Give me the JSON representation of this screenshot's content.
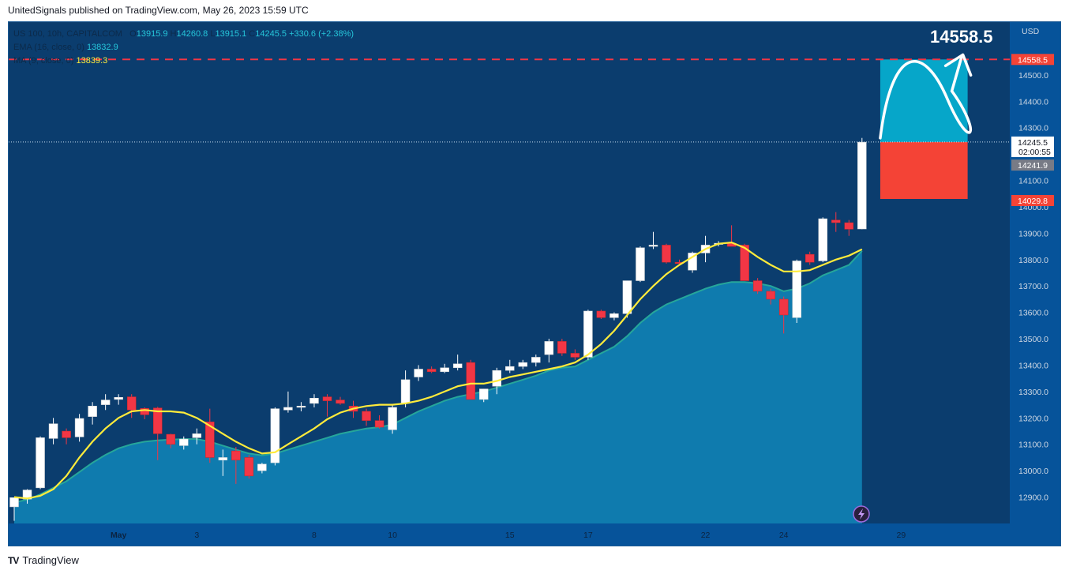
{
  "publisher_line": "UnitedSignals published on TradingView.com, May 26, 2023 15:59 UTC",
  "footer": {
    "logo": "TV",
    "brand": "TradingView"
  },
  "legend": {
    "symbol": "US 100, 10h, CAPITALCOM",
    "o_label": "O",
    "o": "13915.9",
    "h_label": "H",
    "h": "14260.8",
    "l_label": "L",
    "l": "13915.1",
    "c_label": "C",
    "c": "14245.5",
    "change": "+330.6 (+2.38%)",
    "ema_label": "EMA (16, close, 0)",
    "ema_value": "13832.9",
    "ma_label": "MA (9, close, 0)",
    "ma_value": "13839.3"
  },
  "currency": "USD",
  "target_text": "14558.5",
  "price_tags": [
    {
      "value": 14558.5,
      "label": "14558.5",
      "color": "#f44336",
      "text_color": "#ffffff"
    },
    {
      "value": 14245.5,
      "label": "14245.5",
      "sub": "02:00:55",
      "color": "#ffffff",
      "text_color": "#131722"
    },
    {
      "value": 14241.9,
      "label": "14241.9",
      "color": "#787b86",
      "text_color": "#ffffff"
    },
    {
      "value": 14029.8,
      "label": "14029.8",
      "color": "#f44336",
      "text_color": "#ffffff"
    }
  ],
  "colors": {
    "up": "#ffffff",
    "down": "#f23645",
    "ema": "#26a69a",
    "ma": "#ffeb3b",
    "area": "#0f82b5",
    "bg": "#0b3d6e",
    "target_box": "#06a6c9",
    "stop_box": "#f44336",
    "target_line": "#f23645"
  },
  "chart_data": {
    "type": "candlestick",
    "interval": "10h",
    "ylim": [
      12800,
      14700
    ],
    "y_ticks": [
      12900,
      13000,
      13100,
      13200,
      13300,
      13400,
      13500,
      13600,
      13700,
      13800,
      13900,
      14000,
      14100,
      14200,
      14300,
      14400,
      14500
    ],
    "x_ticks": [
      {
        "index": 8,
        "label": "May",
        "bold": true
      },
      {
        "index": 14,
        "label": "3"
      },
      {
        "index": 23,
        "label": "8"
      },
      {
        "index": 29,
        "label": "10"
      },
      {
        "index": 38,
        "label": "15"
      },
      {
        "index": 44,
        "label": "17"
      },
      {
        "index": 53,
        "label": "22"
      },
      {
        "index": 59,
        "label": "24"
      },
      {
        "index": 68,
        "label": "29"
      }
    ],
    "candles": [
      [
        12863,
        12898,
        12810,
        12898
      ],
      [
        12892,
        12930,
        12875,
        12927
      ],
      [
        12935,
        13130,
        12930,
        13125
      ],
      [
        13122,
        13200,
        13100,
        13178
      ],
      [
        13150,
        13160,
        13100,
        13125
      ],
      [
        13128,
        13215,
        13110,
        13198
      ],
      [
        13205,
        13260,
        13175,
        13245
      ],
      [
        13250,
        13290,
        13230,
        13268
      ],
      [
        13270,
        13290,
        13250,
        13278
      ],
      [
        13280,
        13290,
        13200,
        13230
      ],
      [
        13236,
        13240,
        13195,
        13212
      ],
      [
        13238,
        13242,
        13040,
        13140
      ],
      [
        13138,
        13140,
        13085,
        13100
      ],
      [
        13095,
        13130,
        13080,
        13120
      ],
      [
        13125,
        13160,
        13100,
        13140
      ],
      [
        13185,
        13235,
        13030,
        13050
      ],
      [
        13040,
        13080,
        12980,
        13050
      ],
      [
        13075,
        13090,
        12950,
        13040
      ],
      [
        13050,
        13060,
        12970,
        12980
      ],
      [
        13000,
        13030,
        12990,
        13025
      ],
      [
        13030,
        13240,
        13020,
        13235
      ],
      [
        13230,
        13300,
        13220,
        13240
      ],
      [
        13240,
        13260,
        13225,
        13245
      ],
      [
        13255,
        13290,
        13240,
        13275
      ],
      [
        13280,
        13290,
        13205,
        13265
      ],
      [
        13268,
        13280,
        13250,
        13255
      ],
      [
        13245,
        13265,
        13200,
        13225
      ],
      [
        13225,
        13235,
        13170,
        13190
      ],
      [
        13190,
        13210,
        13160,
        13165
      ],
      [
        13155,
        13250,
        13140,
        13240
      ],
      [
        13255,
        13380,
        13240,
        13345
      ],
      [
        13355,
        13400,
        13340,
        13385
      ],
      [
        13385,
        13395,
        13370,
        13375
      ],
      [
        13375,
        13405,
        13370,
        13390
      ],
      [
        13390,
        13440,
        13380,
        13405
      ],
      [
        13410,
        13420,
        13270,
        13270
      ],
      [
        13270,
        13310,
        13260,
        13310
      ],
      [
        13320,
        13390,
        13290,
        13380
      ],
      [
        13380,
        13420,
        13370,
        13395
      ],
      [
        13395,
        13420,
        13385,
        13410
      ],
      [
        13410,
        13440,
        13395,
        13430
      ],
      [
        13440,
        13500,
        13410,
        13490
      ],
      [
        13490,
        13500,
        13435,
        13445
      ],
      [
        13445,
        13460,
        13420,
        13430
      ],
      [
        13430,
        13610,
        13420,
        13605
      ],
      [
        13605,
        13610,
        13575,
        13580
      ],
      [
        13580,
        13600,
        13570,
        13595
      ],
      [
        13595,
        13720,
        13580,
        13720
      ],
      [
        13720,
        13850,
        13715,
        13845
      ],
      [
        13850,
        13905,
        13840,
        13855
      ],
      [
        13855,
        13860,
        13785,
        13790
      ],
      [
        13790,
        13800,
        13780,
        13785
      ],
      [
        13760,
        13830,
        13750,
        13825
      ],
      [
        13825,
        13890,
        13790,
        13855
      ],
      [
        13860,
        13870,
        13850,
        13862
      ],
      [
        13862,
        13930,
        13850,
        13850
      ],
      [
        13855,
        13860,
        13720,
        13720
      ],
      [
        13720,
        13730,
        13670,
        13680
      ],
      [
        13680,
        13690,
        13630,
        13650
      ],
      [
        13650,
        13660,
        13520,
        13590
      ],
      [
        13580,
        13800,
        13560,
        13795
      ],
      [
        13820,
        13830,
        13780,
        13790
      ],
      [
        13795,
        13960,
        13790,
        13955
      ],
      [
        13950,
        13980,
        13905,
        13940
      ],
      [
        13940,
        13950,
        13890,
        13915
      ],
      [
        13916,
        14261,
        13915,
        14245
      ]
    ],
    "ema_area_top": [
      12880,
      12890,
      12910,
      12935,
      12960,
      12995,
      13030,
      13060,
      13085,
      13100,
      13110,
      13115,
      13118,
      13120,
      13120,
      13110,
      13095,
      13080,
      13065,
      13058,
      13065,
      13080,
      13095,
      13110,
      13125,
      13140,
      13150,
      13160,
      13165,
      13175,
      13200,
      13225,
      13245,
      13265,
      13280,
      13290,
      13300,
      13315,
      13330,
      13345,
      13360,
      13380,
      13390,
      13395,
      13420,
      13445,
      13470,
      13510,
      13560,
      13600,
      13630,
      13650,
      13670,
      13690,
      13705,
      13715,
      13715,
      13710,
      13700,
      13680,
      13690,
      13710,
      13740,
      13760,
      13780,
      13833
    ],
    "ma_line": [
      12900,
      12895,
      12905,
      12930,
      12980,
      13050,
      13110,
      13160,
      13200,
      13225,
      13230,
      13225,
      13225,
      13220,
      13200,
      13170,
      13140,
      13110,
      13085,
      13065,
      13070,
      13100,
      13130,
      13160,
      13195,
      13220,
      13235,
      13245,
      13250,
      13250,
      13255,
      13265,
      13280,
      13300,
      13320,
      13330,
      13330,
      13340,
      13355,
      13365,
      13375,
      13385,
      13395,
      13410,
      13440,
      13480,
      13530,
      13590,
      13650,
      13700,
      13745,
      13780,
      13810,
      13840,
      13860,
      13865,
      13845,
      13810,
      13780,
      13755,
      13755,
      13760,
      13780,
      13800,
      13815,
      13839
    ]
  },
  "position": {
    "entry": 14245.5,
    "target": 14558.5,
    "stop": 14029.8,
    "start_index": 66,
    "end_index": 71
  }
}
